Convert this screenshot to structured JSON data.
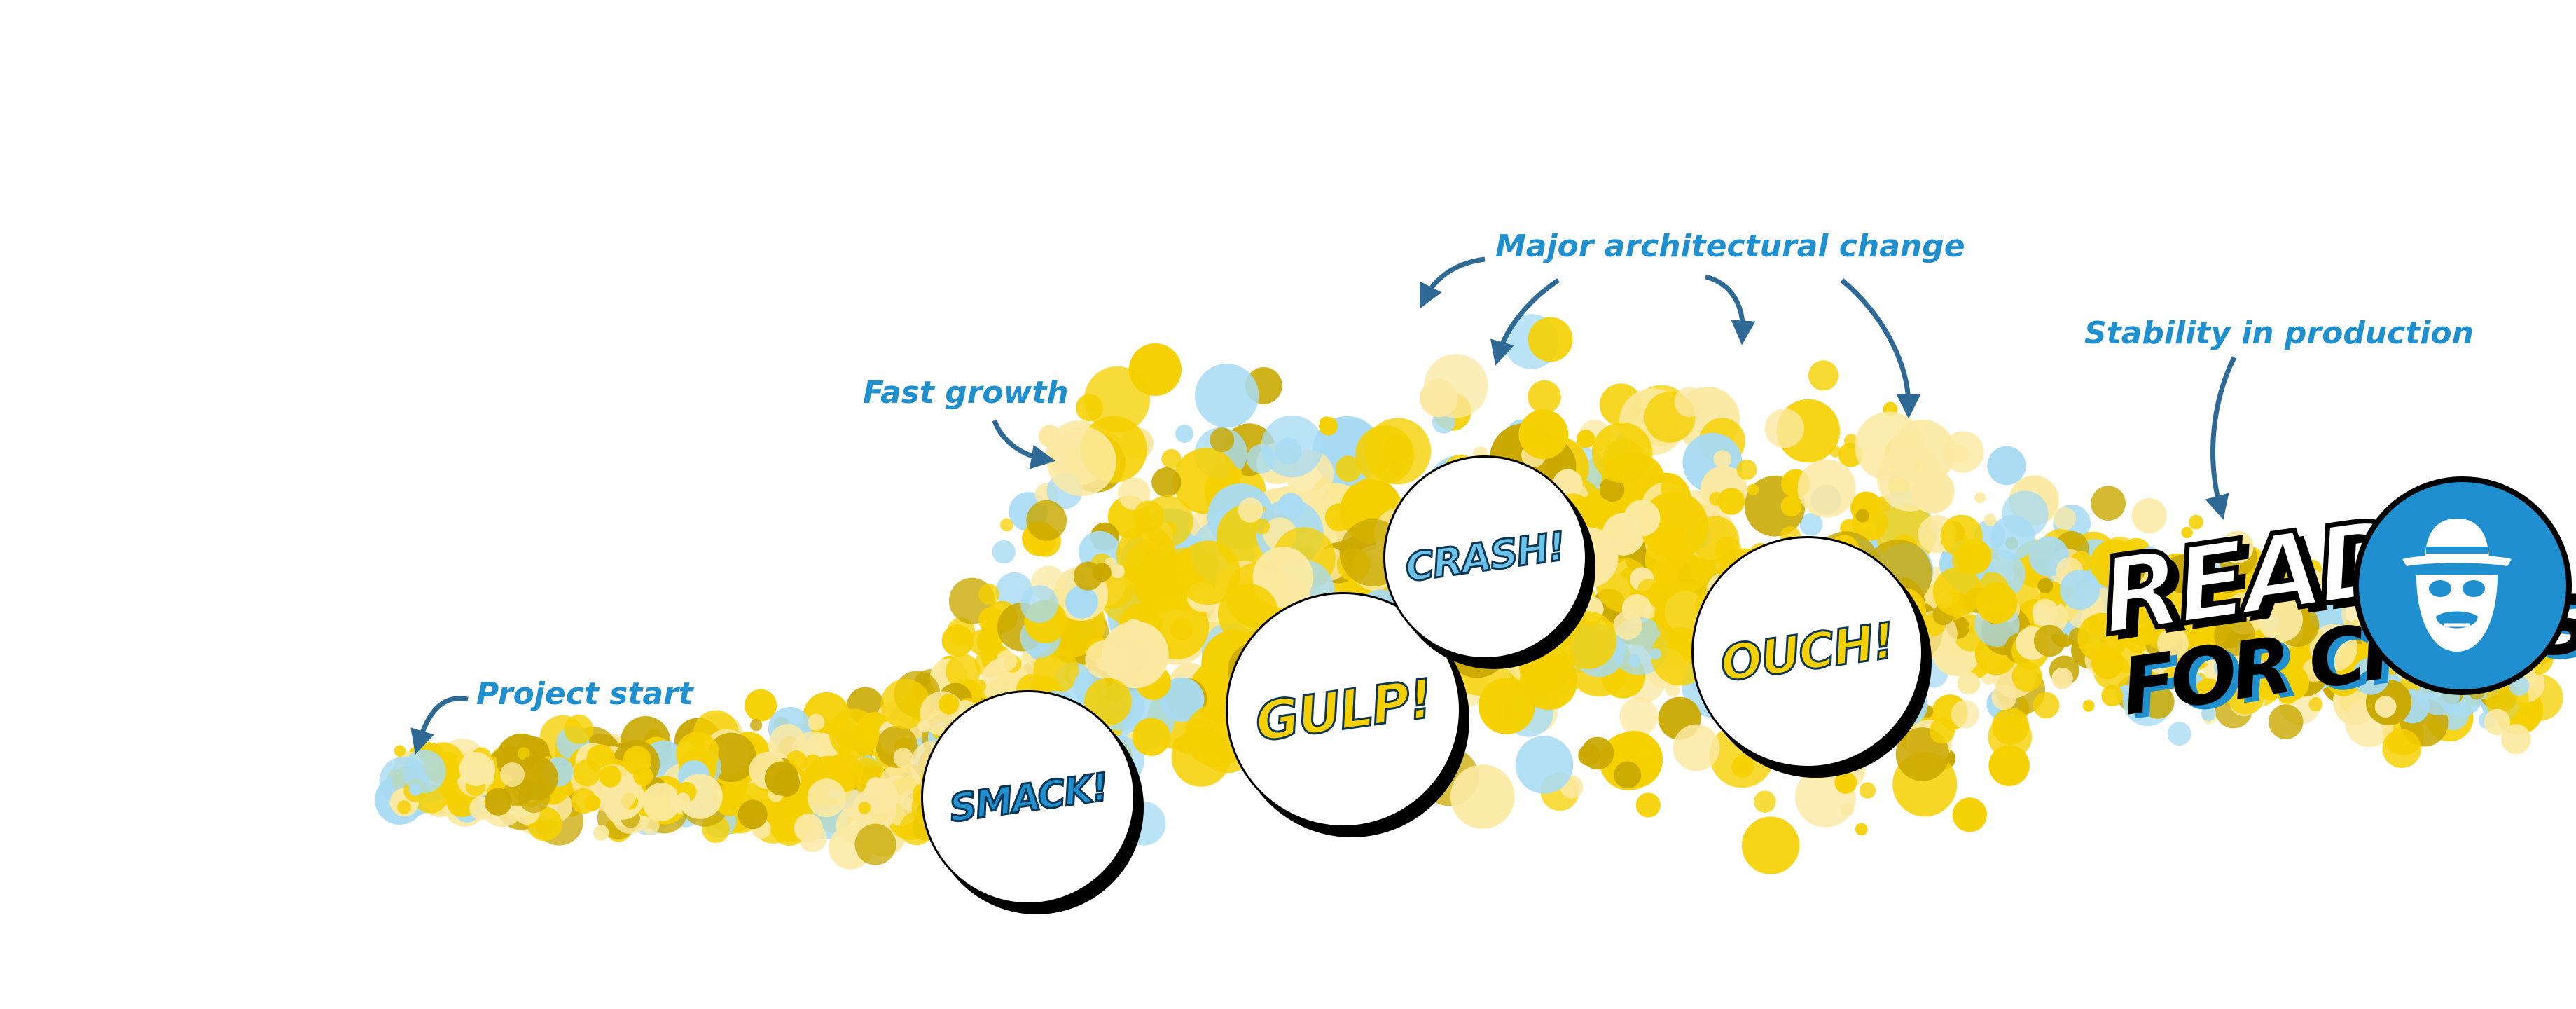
{
  "annotations": {
    "project_start": "Project start",
    "fast_growth": "Fast growth",
    "major_change": "Major architectural change",
    "stability": "Stability in production"
  },
  "bursts": {
    "smack": "SMACK!",
    "gulp": "GULP!",
    "crash": "CRASH!",
    "ouch": "OUCH!"
  },
  "ready_for_chaos": {
    "line1": "READY",
    "line2": "FOR CHAOS"
  },
  "logo_icon": "gorilla-hat-icon",
  "colors": {
    "accent_blue": "#1f8fcf",
    "arrow_blue": "#2f6a97",
    "yellow": "#f5d000",
    "pale_yellow": "#fbe9a2",
    "light_blue": "#a8dbf3",
    "olive": "#c9a800",
    "black": "#000000"
  }
}
